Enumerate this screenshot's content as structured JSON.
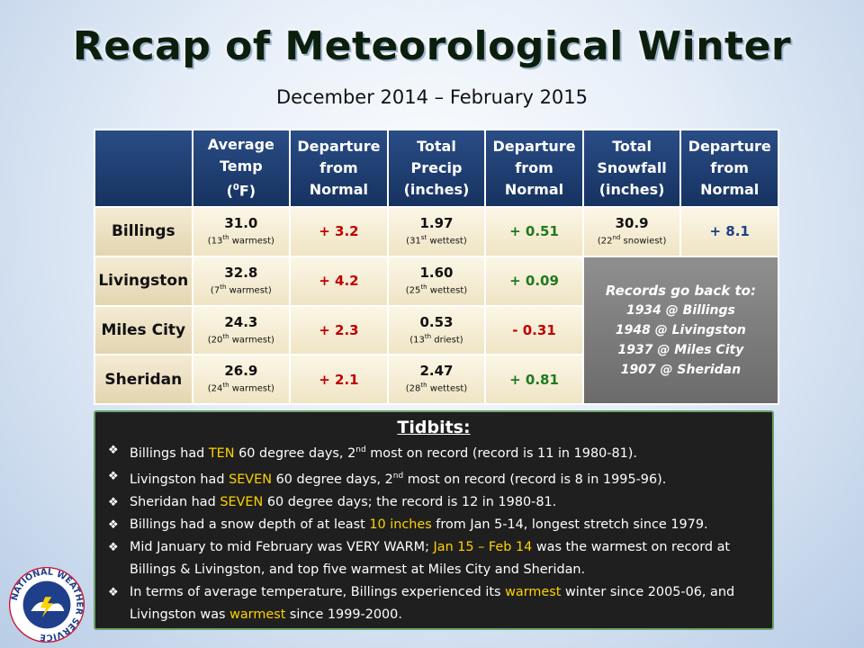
{
  "title": "Recap of Meteorological Winter",
  "subtitle": "December 2014 – February 2015",
  "table": {
    "headers": {
      "avg_temp": [
        "Average",
        "Temp",
        "(",
        "0",
        "F)"
      ],
      "dep1": [
        "Departure",
        "from",
        "Normal"
      ],
      "precip": [
        "Total",
        "Precip",
        "(inches)"
      ],
      "dep2": [
        "Departure",
        "from",
        "Normal"
      ],
      "snow": [
        "Total",
        "Snowfall",
        "(inches)"
      ],
      "dep3": [
        "Departure",
        "from",
        "Normal"
      ]
    },
    "rows": [
      {
        "city": "Billings",
        "temp": "31.0",
        "temp_rank_num": "13",
        "temp_rank_sup": "th",
        "temp_rank_word": "warmest",
        "temp_dep": "+ 3.2",
        "precip": "1.97",
        "precip_rank_num": "31",
        "precip_rank_sup": "st",
        "precip_rank_word": "wettest",
        "precip_dep": "+ 0.51",
        "snow": "30.9",
        "snow_rank_num": "22",
        "snow_rank_sup": "nd",
        "snow_rank_word": "snowiest",
        "snow_dep": "+ 8.1"
      },
      {
        "city": "Livingston",
        "temp": "32.8",
        "temp_rank_num": "7",
        "temp_rank_sup": "th",
        "temp_rank_word": "warmest",
        "temp_dep": "+ 4.2",
        "precip": "1.60",
        "precip_rank_num": "25",
        "precip_rank_sup": "th",
        "precip_rank_word": "wettest",
        "precip_dep": "+ 0.09"
      },
      {
        "city": "Miles City",
        "temp": "24.3",
        "temp_rank_num": "20",
        "temp_rank_sup": "th",
        "temp_rank_word": "warmest",
        "temp_dep": "+ 2.3",
        "precip": "0.53",
        "precip_rank_num": "13",
        "precip_rank_sup": "th",
        "precip_rank_word": "driest",
        "precip_dep": "- 0.31"
      },
      {
        "city": "Sheridan",
        "temp": "26.9",
        "temp_rank_num": "24",
        "temp_rank_sup": "th",
        "temp_rank_word": "warmest",
        "temp_dep": "+ 2.1",
        "precip": "2.47",
        "precip_rank_num": "28",
        "precip_rank_sup": "th",
        "precip_rank_word": "wettest",
        "precip_dep": "+ 0.81"
      }
    ],
    "records": {
      "heading": "Records go back to:",
      "lines": [
        "1934 @ Billings",
        "1948 @ Livingston",
        "1937 @ Miles City",
        "1907 @ Sheridan"
      ]
    }
  },
  "tidbits": {
    "title": "Tidbits:",
    "bullet_glyph": "❖",
    "items": [
      {
        "a": "Billings had ",
        "hl": "TEN",
        "b": " 60 degree days, 2",
        "sup": "nd",
        "c": " most on record (record is 11 in 1980-81)."
      },
      {
        "a": "Livingston had ",
        "hl": "SEVEN",
        "b": " 60 degree days, 2",
        "sup": "nd",
        "c": " most on record (record is 8 in 1995-96)."
      },
      {
        "a": "Sheridan had ",
        "hl": "SEVEN",
        "b": " 60 degree days; the record is 12 in 1980-81."
      },
      {
        "a": "Billings had a snow depth of at least ",
        "hl": "10 inches",
        "b": " from Jan 5-14, longest stretch since 1979."
      },
      {
        "a": "Mid January to mid February was VERY WARM; ",
        "hl": "Jan 15 – Feb 14",
        "b": " was the warmest on record at Billings & Livingston, and top five warmest at Miles City and Sheridan."
      },
      {
        "a": "In terms of average temperature, Billings experienced its ",
        "hl": "warmest",
        "b": " winter since 2005-06, and Livingston was ",
        "hl2": "warmest",
        "c": " since 1999-2000."
      }
    ]
  },
  "logo": {
    "icon": "nws-logo-icon",
    "text": "NATIONAL WEATHER SERVICE"
  },
  "colors": {
    "header_blue": "#1f4072",
    "highlight": "#ffd200",
    "positive_dep": "#c00000",
    "precip_dep_green": "#1e7a1e",
    "snow_dep_blue": "#1f3f8a"
  }
}
